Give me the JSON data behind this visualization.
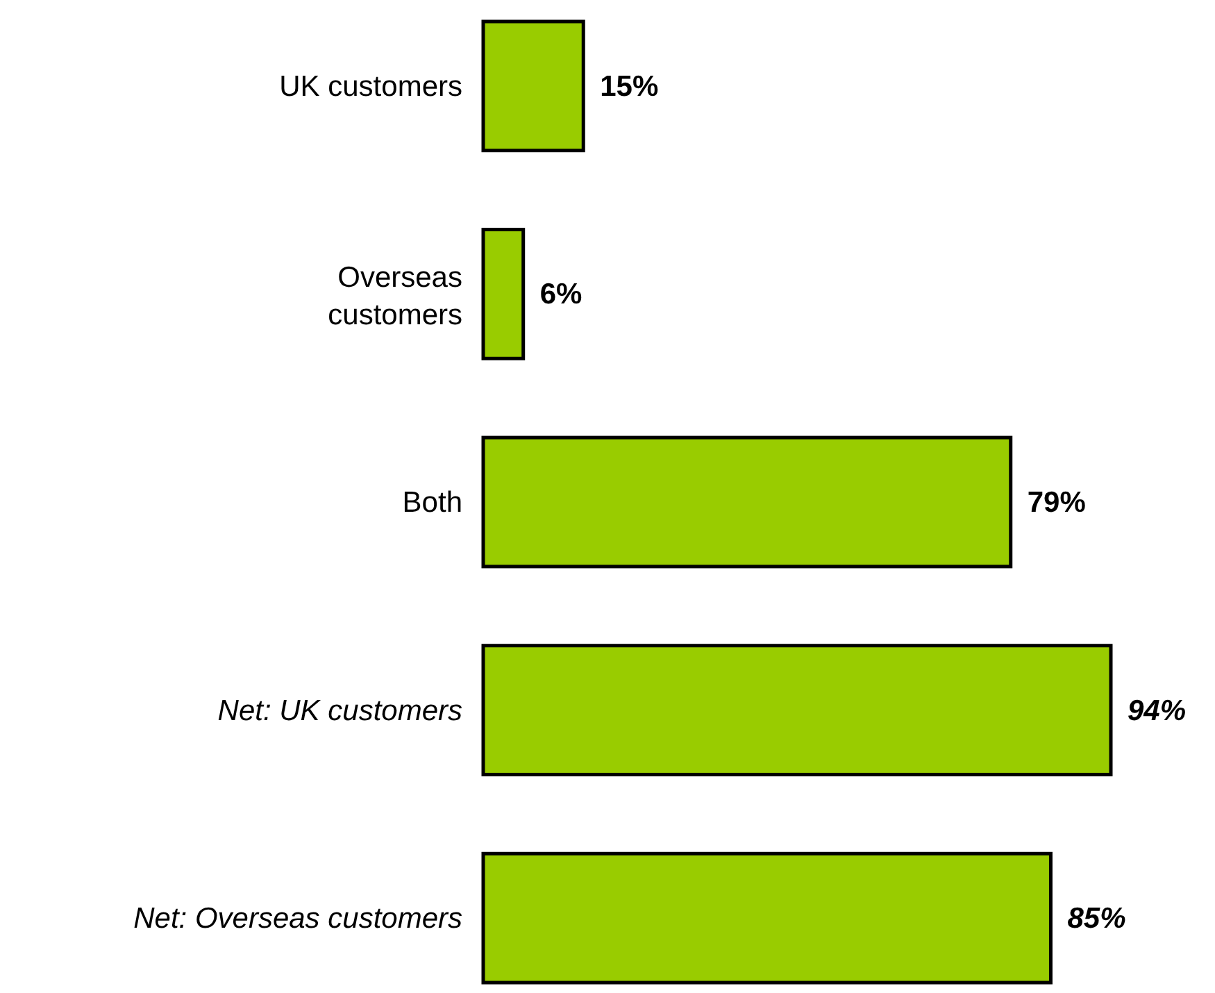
{
  "chart_data": {
    "type": "bar",
    "orientation": "horizontal",
    "categories": [
      "UK customers",
      "Overseas customers",
      "Both",
      "Net: UK customers",
      "Net: Overseas customers"
    ],
    "values": [
      15,
      6,
      79,
      94,
      85
    ],
    "value_labels": [
      "15%",
      "6%",
      "79%",
      "94%",
      "85%"
    ],
    "color": "#99cc00"
  }
}
